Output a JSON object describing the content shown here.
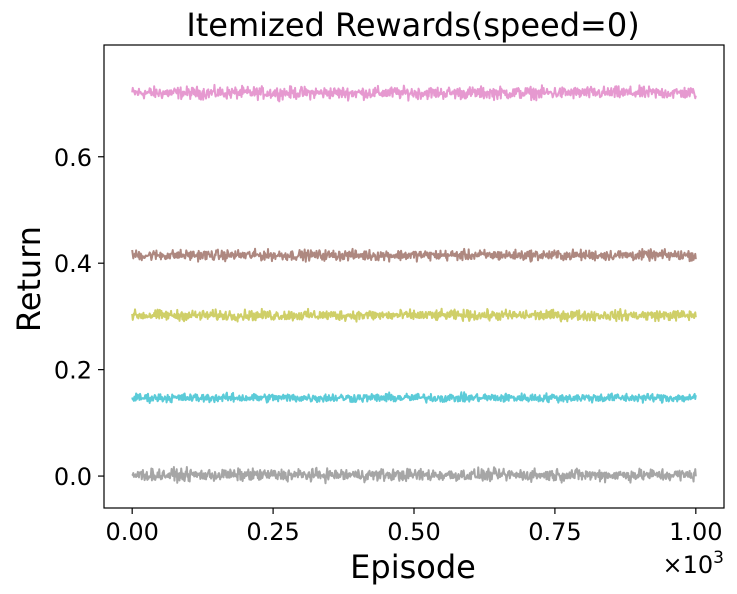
{
  "chart_data": {
    "type": "line",
    "title": "Itemized Rewards(speed=0)",
    "xlabel": "Episode",
    "ylabel": "Return",
    "x_offset_label": "×10",
    "x_offset_exp": "3",
    "xlim": [
      -0.05,
      1.05
    ],
    "ylim": [
      -0.06,
      0.81
    ],
    "x_ticks": [
      0.0,
      0.25,
      0.5,
      0.75,
      1.0
    ],
    "x_tick_labels": [
      "0.00",
      "0.25",
      "0.50",
      "0.75",
      "1.00"
    ],
    "y_ticks": [
      0.0,
      0.2,
      0.4,
      0.6
    ],
    "y_tick_labels": [
      "0.0",
      "0.2",
      "0.4",
      "0.6"
    ],
    "grid": false,
    "legend": "none",
    "series": [
      {
        "color": "#e699d0",
        "mean": 0.72,
        "noise": 0.007,
        "x_range": [
          0.0,
          1.0
        ]
      },
      {
        "color": "#ae8880",
        "mean": 0.415,
        "noise": 0.006,
        "x_range": [
          0.0,
          1.0
        ]
      },
      {
        "color": "#cfcf68",
        "mean": 0.302,
        "noise": 0.006,
        "x_range": [
          0.0,
          1.0
        ]
      },
      {
        "color": "#5bcbd8",
        "mean": 0.147,
        "noise": 0.005,
        "x_range": [
          0.0,
          1.0
        ]
      },
      {
        "color": "#a6a6a6",
        "mean": 0.002,
        "noise": 0.007,
        "x_range": [
          0.0,
          1.0
        ]
      }
    ]
  }
}
